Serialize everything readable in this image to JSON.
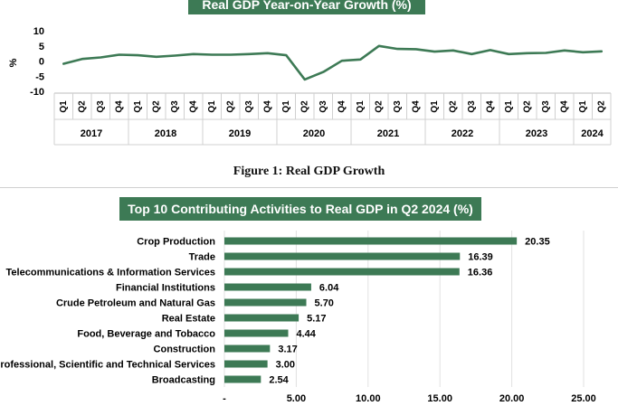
{
  "chart_data": [
    {
      "type": "line",
      "title": "Real GDP Year-on-Year Growth (%)",
      "ylabel": "%",
      "yticks": [
        "10",
        "5",
        "0",
        "-5",
        "-10"
      ],
      "ylim": [
        -10,
        10
      ],
      "grid": false,
      "color": "#3d7a55",
      "quarters": [
        "Q1",
        "Q2",
        "Q3",
        "Q4",
        "Q1",
        "Q2",
        "Q3",
        "Q4",
        "Q1",
        "Q2",
        "Q3",
        "Q4",
        "Q1",
        "Q2",
        "Q3",
        "Q4",
        "Q1",
        "Q2",
        "Q3",
        "Q4",
        "Q1",
        "Q2",
        "Q3",
        "Q4",
        "Q1",
        "Q2",
        "Q3",
        "Q4",
        "Q1",
        "Q2"
      ],
      "years": [
        {
          "label": "2017",
          "span": 4
        },
        {
          "label": "2018",
          "span": 4
        },
        {
          "label": "2019",
          "span": 4
        },
        {
          "label": "2020",
          "span": 4
        },
        {
          "label": "2021",
          "span": 4
        },
        {
          "label": "2022",
          "span": 4
        },
        {
          "label": "2023",
          "span": 4
        },
        {
          "label": "2024",
          "span": 2
        }
      ],
      "series": [
        {
          "values": [
            -0.9,
            0.7,
            1.2,
            2.1,
            1.9,
            1.4,
            1.8,
            2.3,
            2.1,
            2.1,
            2.3,
            2.6,
            1.9,
            -6.1,
            -3.6,
            0.1,
            0.5,
            5.0,
            4.0,
            3.9,
            3.1,
            3.5,
            2.3,
            3.6,
            2.3,
            2.6,
            2.7,
            3.5,
            2.9,
            3.2
          ]
        }
      ]
    },
    {
      "type": "bar",
      "orientation": "horizontal",
      "title": "Top 10 Contributing Activities to Real GDP in Q2 2024 (%)",
      "color": "#3d7a55",
      "grid": true,
      "xlim": [
        0,
        25
      ],
      "xticks": [
        "-",
        "5.00",
        "10.00",
        "15.00",
        "20.00",
        "25.00"
      ],
      "categories": [
        "Crop Production",
        "Trade",
        "Telecommunications & Information Services",
        "Financial Institutions",
        "Crude Petroleum and Natural Gas",
        "Real Estate",
        "Food, Beverage and Tobacco",
        "Construction",
        "Professional, Scientific and Technical Services",
        "Broadcasting"
      ],
      "values": [
        20.35,
        16.39,
        16.36,
        6.04,
        5.7,
        5.17,
        4.44,
        3.17,
        3.0,
        2.54
      ],
      "data_labels": [
        "20.35",
        "16.39",
        "16.36",
        "6.04",
        "5.70",
        "5.17",
        "4.44",
        "3.17",
        "3.00",
        "2.54"
      ]
    }
  ],
  "figure_caption": "Figure 1: Real GDP Growth"
}
